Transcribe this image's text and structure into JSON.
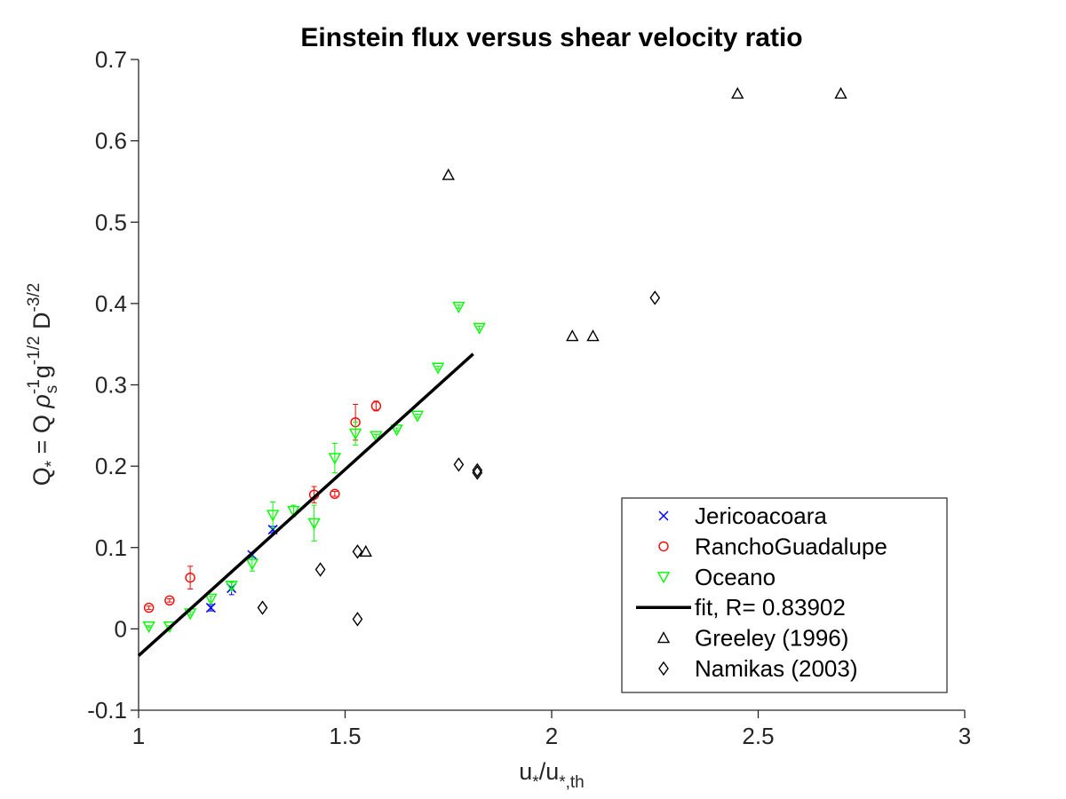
{
  "chart_data": {
    "type": "scatter",
    "title": "Einstein flux versus shear velocity ratio",
    "xlabel": {
      "base": "u",
      "sub1": "*",
      "slash": "/u",
      "sub2": "*,th"
    },
    "ylabel": {
      "q": "Q",
      "q_sub": "*",
      "eq": " = Q ",
      "rho": "ρ",
      "rho_sup": "-1",
      "rho_sub": "s",
      "g": " g",
      "g_sup": "-1/2",
      "d": " D",
      "d_sup": "-3/2"
    },
    "xlim": [
      1,
      3
    ],
    "ylim": [
      -0.1,
      0.7
    ],
    "xticks": [
      1,
      1.5,
      2,
      2.5,
      3
    ],
    "xtick_labels": [
      "1",
      "1.5",
      "2",
      "2.5",
      "3"
    ],
    "yticks": [
      -0.1,
      0,
      0.1,
      0.2,
      0.3,
      0.4,
      0.5,
      0.6,
      0.7
    ],
    "ytick_labels": [
      "-0.1",
      "0",
      "0.1",
      "0.2",
      "0.3",
      "0.4",
      "0.5",
      "0.6",
      "0.7"
    ],
    "grid": false,
    "legend_position": "bottom-right",
    "series": [
      {
        "name": "Jericoacoara",
        "marker": "x",
        "color": "#0000ff",
        "points": [
          {
            "x": 1.175,
            "y": 0.026,
            "err": 0.004
          },
          {
            "x": 1.225,
            "y": 0.05,
            "err": 0.008
          },
          {
            "x": 1.275,
            "y": 0.091,
            "err": 0.003
          },
          {
            "x": 1.325,
            "y": 0.122,
            "err": 0.004
          }
        ]
      },
      {
        "name": "RanchoGuadalupe",
        "marker": "circle",
        "color": "#ff0000",
        "points": [
          {
            "x": 1.025,
            "y": 0.026,
            "err": 0.002
          },
          {
            "x": 1.075,
            "y": 0.035,
            "err": 0.002
          },
          {
            "x": 1.125,
            "y": 0.063,
            "err": 0.014
          },
          {
            "x": 1.425,
            "y": 0.165,
            "err": 0.01
          },
          {
            "x": 1.475,
            "y": 0.166,
            "err": 0.003
          },
          {
            "x": 1.525,
            "y": 0.254,
            "err": 0.022
          },
          {
            "x": 1.575,
            "y": 0.274,
            "err": 0.006
          }
        ]
      },
      {
        "name": "Oceano",
        "marker": "triangle-down",
        "color": "#00ff00",
        "points": [
          {
            "x": 1.025,
            "y": 0.003,
            "err": 0.001
          },
          {
            "x": 1.075,
            "y": 0.003,
            "err": 0.001
          },
          {
            "x": 1.125,
            "y": 0.019,
            "err": 0.002
          },
          {
            "x": 1.175,
            "y": 0.037,
            "err": 0.003
          },
          {
            "x": 1.225,
            "y": 0.053,
            "err": 0.004
          },
          {
            "x": 1.275,
            "y": 0.08,
            "err": 0.009
          },
          {
            "x": 1.325,
            "y": 0.14,
            "err": 0.016
          },
          {
            "x": 1.375,
            "y": 0.145,
            "err": 0.007
          },
          {
            "x": 1.425,
            "y": 0.13,
            "err": 0.022
          },
          {
            "x": 1.475,
            "y": 0.21,
            "err": 0.018
          },
          {
            "x": 1.525,
            "y": 0.24,
            "err": 0.014
          },
          {
            "x": 1.575,
            "y": 0.237,
            "err": 0.002
          },
          {
            "x": 1.625,
            "y": 0.245,
            "err": 0.002
          },
          {
            "x": 1.675,
            "y": 0.262,
            "err": 0.002
          },
          {
            "x": 1.725,
            "y": 0.321,
            "err": 0.002
          },
          {
            "x": 1.775,
            "y": 0.396,
            "err": 0.002
          },
          {
            "x": 1.825,
            "y": 0.37,
            "err": 0.002
          }
        ]
      },
      {
        "name": "fit, R= 0.83902",
        "marker": "line",
        "color": "#000000",
        "line": [
          {
            "x": 1.0,
            "y": -0.033
          },
          {
            "x": 1.81,
            "y": 0.338
          }
        ]
      },
      {
        "name": "Greeley (1996)",
        "marker": "triangle-up",
        "color": "#000000",
        "points": [
          {
            "x": 1.55,
            "y": 0.095
          },
          {
            "x": 1.75,
            "y": 0.558
          },
          {
            "x": 2.05,
            "y": 0.36
          },
          {
            "x": 2.1,
            "y": 0.36
          },
          {
            "x": 2.45,
            "y": 0.658
          },
          {
            "x": 2.7,
            "y": 0.658
          }
        ]
      },
      {
        "name": "Namikas (2003)",
        "marker": "diamond",
        "color": "#000000",
        "points": [
          {
            "x": 1.3,
            "y": 0.026
          },
          {
            "x": 1.44,
            "y": 0.073
          },
          {
            "x": 1.53,
            "y": 0.095
          },
          {
            "x": 1.53,
            "y": 0.012
          },
          {
            "x": 1.775,
            "y": 0.202
          },
          {
            "x": 1.82,
            "y": 0.195
          },
          {
            "x": 1.82,
            "y": 0.192
          },
          {
            "x": 2.25,
            "y": 0.407
          }
        ]
      }
    ]
  }
}
